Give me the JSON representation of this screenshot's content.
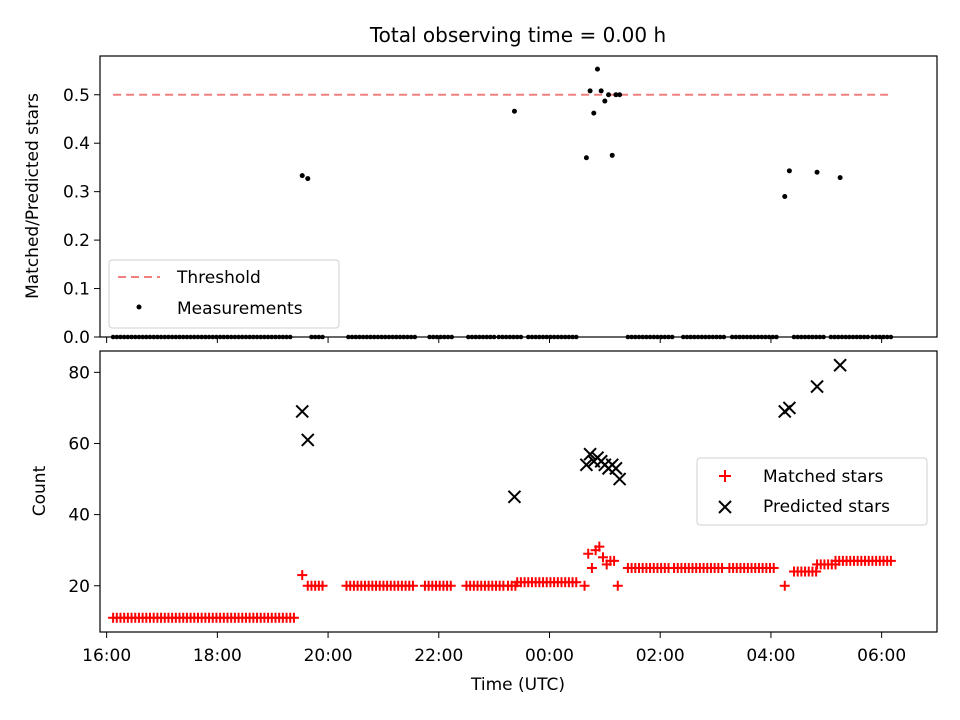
{
  "chart_data": [
    {
      "type": "scatter",
      "title": "Total observing time = 0.00 h",
      "xlabel": "",
      "ylabel": "Matched/Predicted stars",
      "xlim": [
        "16:00",
        "07:00"
      ],
      "ylim": [
        0,
        0.58
      ],
      "yticks": [
        "0.0",
        "0.1",
        "0.2",
        "0.3",
        "0.4",
        "0.5"
      ],
      "legend_position": "lower-left",
      "series": [
        {
          "name": "Threshold",
          "style": "dashed",
          "color": "#f08080",
          "x": [
            "16:07",
            "06:07"
          ],
          "y": [
            0.5,
            0.5
          ]
        },
        {
          "name": "Measurements",
          "style": "points",
          "color": "#000000",
          "x": [
            "19:32",
            "19:38",
            "23:22",
            "00:40",
            "00:44",
            "00:48",
            "00:52",
            "00:56",
            "01:00",
            "01:04",
            "01:08",
            "01:12",
            "01:16",
            "04:15",
            "04:20",
            "04:50",
            "05:15"
          ],
          "y": [
            0.333,
            0.327,
            0.466,
            0.37,
            0.508,
            0.462,
            0.553,
            0.508,
            0.487,
            0.5,
            0.375,
            0.5,
            0.5,
            0.29,
            0.343,
            0.34,
            0.329
          ]
        },
        {
          "name": "",
          "style": "zero-points",
          "color": "#000000",
          "x_ranges": [
            [
              "16:07",
              "19:20"
            ],
            [
              "19:42",
              "19:55"
            ],
            [
              "20:22",
              "21:35"
            ],
            [
              "21:50",
              "22:15"
            ],
            [
              "22:32",
              "23:00"
            ],
            [
              "23:05",
              "23:30"
            ],
            [
              "23:37",
              "00:32"
            ],
            [
              "01:25",
              "02:15"
            ],
            [
              "02:25",
              "03:10"
            ],
            [
              "03:18",
              "04:08"
            ],
            [
              "04:25",
              "05:00"
            ],
            [
              "05:05",
              "05:45"
            ],
            [
              "05:50",
              "06:10"
            ]
          ],
          "y": 0
        }
      ]
    },
    {
      "type": "scatter",
      "title": "",
      "xlabel": "Time (UTC)",
      "ylabel": "Count",
      "xlim": [
        "16:00",
        "07:00"
      ],
      "ylim": [
        7,
        86
      ],
      "yticks": [
        "20",
        "40",
        "60",
        "80"
      ],
      "xticks": [
        "16:00",
        "18:00",
        "20:00",
        "22:00",
        "00:00",
        "02:00",
        "04:00",
        "06:00"
      ],
      "legend_position": "right",
      "series": [
        {
          "name": "Matched stars",
          "marker": "+",
          "color": "#ff0000",
          "segments": [
            {
              "from": "16:07",
              "to": "19:25",
              "y": 11
            },
            {
              "from": "19:38",
              "to": "19:55",
              "y": 20
            },
            {
              "from": "20:20",
              "to": "21:35",
              "y": 20
            },
            {
              "from": "21:45",
              "to": "22:15",
              "y": 20
            },
            {
              "from": "22:30",
              "to": "23:10",
              "y": 20
            },
            {
              "from": "23:15",
              "to": "23:25",
              "y": 20
            },
            {
              "from": "23:25",
              "to": "00:32",
              "y": 21
            },
            {
              "from": "01:25",
              "to": "02:10",
              "y": 25
            },
            {
              "from": "02:15",
              "to": "03:10",
              "y": 25
            },
            {
              "from": "03:15",
              "to": "04:05",
              "y": 25
            },
            {
              "from": "04:25",
              "to": "04:50",
              "y": 24
            },
            {
              "from": "04:50",
              "to": "05:10",
              "y": 26
            },
            {
              "from": "05:10",
              "to": "06:10",
              "y": 27
            }
          ],
          "x": [
            "19:32",
            "00:38",
            "00:42",
            "00:46",
            "00:50",
            "00:54",
            "00:58",
            "01:02",
            "01:06",
            "01:10",
            "01:14",
            "04:15"
          ],
          "y": [
            23,
            20,
            29,
            25,
            30,
            31,
            28,
            26,
            27,
            27,
            20,
            20
          ]
        },
        {
          "name": "Predicted stars",
          "marker": "x",
          "color": "#000000",
          "x": [
            "19:32",
            "19:38",
            "23:22",
            "00:40",
            "00:44",
            "00:48",
            "00:52",
            "00:56",
            "01:00",
            "01:04",
            "01:08",
            "01:12",
            "01:16",
            "04:15",
            "04:20",
            "04:50",
            "05:15"
          ],
          "y": [
            69,
            61,
            45,
            54,
            57,
            55,
            56,
            55,
            54,
            53,
            54,
            53,
            50,
            69,
            70,
            76,
            82
          ]
        }
      ]
    }
  ]
}
